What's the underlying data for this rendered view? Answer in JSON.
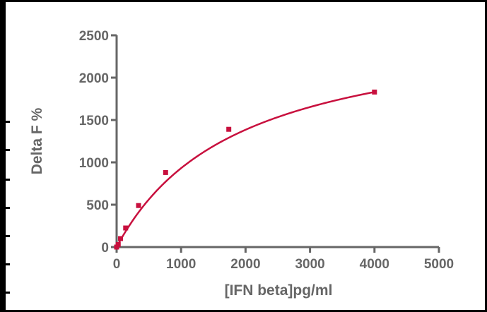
{
  "chart_data": {
    "type": "scatter",
    "title": "",
    "xlabel": "[IFN beta]pg/ml",
    "ylabel": "Delta F %",
    "xlim": [
      0,
      5000
    ],
    "ylim": [
      0,
      2500
    ],
    "x_ticks": [
      "0",
      "1000",
      "2000",
      "3000",
      "4000",
      "5000"
    ],
    "y_ticks": [
      "0",
      "500",
      "1000",
      "1500",
      "2000",
      "2500"
    ],
    "x_tick_values": [
      0,
      1000,
      2000,
      3000,
      4000,
      5000
    ],
    "y_tick_values": [
      0,
      500,
      1000,
      1500,
      2000,
      2500
    ],
    "grid": false,
    "series": [
      {
        "color": "#c8103e",
        "points": [
          {
            "x": 0,
            "y": 0
          },
          {
            "x": 25,
            "y": 30
          },
          {
            "x": 60,
            "y": 100
          },
          {
            "x": 140,
            "y": 225
          },
          {
            "x": 340,
            "y": 490
          },
          {
            "x": 760,
            "y": 880
          },
          {
            "x": 1740,
            "y": 1390
          },
          {
            "x": 4000,
            "y": 1830
          }
        ],
        "fit": {
          "model": "one-site-binding",
          "bmax": 2700,
          "kd": 1900
        }
      }
    ]
  }
}
